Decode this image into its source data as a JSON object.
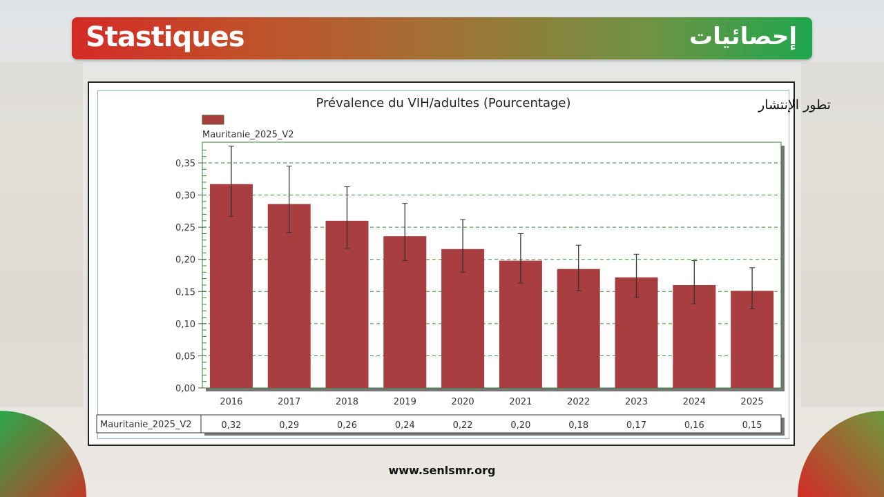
{
  "banner": {
    "title_fr": "Stastiques",
    "title_ar": "إحصائيات"
  },
  "footer": {
    "url": "www.senlsmr.org"
  },
  "colors": {
    "bar": "#a83e3f",
    "grid": "#2f8a2f",
    "banner_start": "#d42a26",
    "banner_end": "#1fa64d"
  },
  "chart_data": {
    "type": "bar",
    "title": "Prévalence du VIH/adultes (Pourcentage)",
    "subtitle_ar": "تطور الإنتشار",
    "legend": {
      "label": "Mauritanie_2025_V2",
      "placement": "top-left"
    },
    "categories": [
      "2016",
      "2017",
      "2018",
      "2019",
      "2020",
      "2021",
      "2022",
      "2023",
      "2024",
      "2025"
    ],
    "series": [
      {
        "name": "Mauritanie_2025_V2",
        "values": [
          0.317,
          0.286,
          0.26,
          0.236,
          0.216,
          0.198,
          0.185,
          0.172,
          0.16,
          0.151
        ],
        "error_upper": [
          0.376,
          0.345,
          0.313,
          0.287,
          0.262,
          0.24,
          0.222,
          0.208,
          0.198,
          0.187
        ],
        "error_lower": [
          0.267,
          0.242,
          0.217,
          0.198,
          0.18,
          0.163,
          0.151,
          0.141,
          0.131,
          0.123
        ]
      }
    ],
    "yticks": [
      "0,00",
      "0,05",
      "0,10",
      "0,15",
      "0,20",
      "0,25",
      "0,30",
      "0,35"
    ],
    "ylim": [
      0,
      0.38
    ],
    "grid": true,
    "table": {
      "row_label": "Mauritanie_2025_V2",
      "values": [
        "0,32",
        "0,29",
        "0,26",
        "0,24",
        "0,22",
        "0,20",
        "0,18",
        "0,17",
        "0,16",
        "0,15"
      ]
    }
  }
}
